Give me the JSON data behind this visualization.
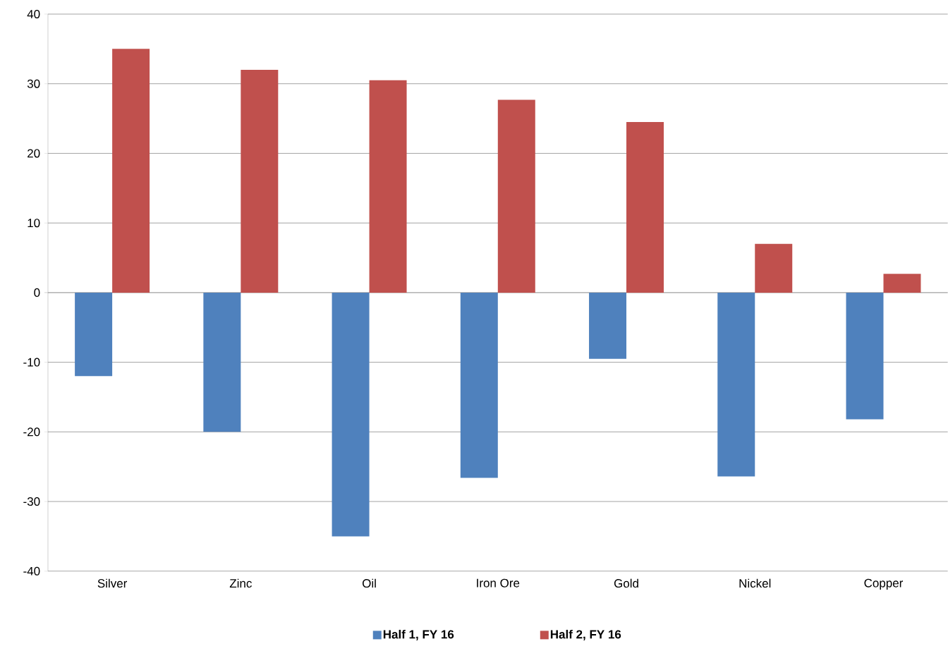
{
  "chart_data": {
    "type": "bar",
    "categories": [
      "Silver",
      "Zinc",
      "Oil",
      "Iron Ore",
      "Gold",
      "Nickel",
      "Copper"
    ],
    "series": [
      {
        "name": "Half 1, FY 16",
        "color": "#4f81bd",
        "values": [
          -12,
          -20,
          -35,
          -26.6,
          -9.5,
          -26.4,
          -18.2
        ]
      },
      {
        "name": "Half 2, FY 16",
        "color": "#c0504d",
        "values": [
          35,
          32,
          30.5,
          27.7,
          24.5,
          7,
          2.7
        ]
      }
    ],
    "ylim": [
      -40,
      40
    ],
    "yticks": [
      -40,
      -30,
      -20,
      -10,
      0,
      10,
      20,
      30,
      40
    ],
    "grid": "y",
    "legend": "bottom"
  }
}
